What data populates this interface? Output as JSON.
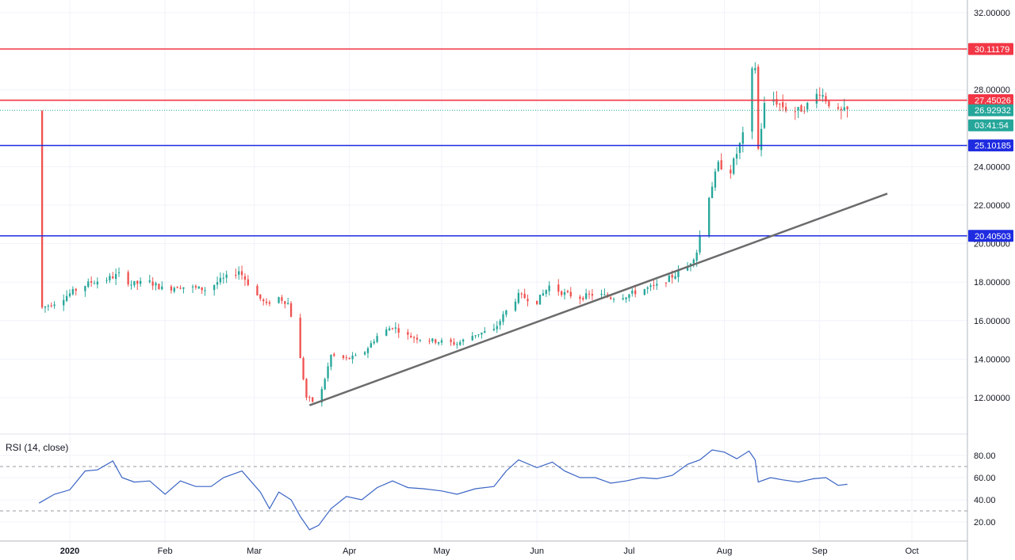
{
  "chart_data": {
    "type": "candlestick",
    "price_axis": {
      "ylim": [
        10.6,
        32.6
      ],
      "ticks": [
        12,
        14,
        16,
        18,
        20,
        22,
        24,
        28,
        32
      ],
      "tick_labels": [
        "12.00000",
        "14.00000",
        "16.00000",
        "18.00000",
        "20.00000",
        "22.00000",
        "24.00000",
        "28.00000",
        "32.00000"
      ]
    },
    "time_axis": {
      "labels": [
        {
          "date": "2020-01-01",
          "label": "2020",
          "bold": true
        },
        {
          "date": "2020-02-01",
          "label": "Feb"
        },
        {
          "date": "2020-03-01",
          "label": "Mar"
        },
        {
          "date": "2020-04-01",
          "label": "Apr"
        },
        {
          "date": "2020-05-01",
          "label": "May"
        },
        {
          "date": "2020-06-01",
          "label": "Jun"
        },
        {
          "date": "2020-07-01",
          "label": "Jul"
        },
        {
          "date": "2020-08-01",
          "label": "Aug"
        },
        {
          "date": "2020-09-01",
          "label": "Sep"
        },
        {
          "date": "2020-10-01",
          "label": "Oct"
        }
      ]
    },
    "close_path": [
      [
        "2019-12-22",
        16.6
      ],
      [
        "2019-12-28",
        17.0
      ],
      [
        "2020-01-03",
        17.6
      ],
      [
        "2020-01-08",
        18.0
      ],
      [
        "2020-01-12",
        18.1
      ],
      [
        "2020-01-17",
        18.4
      ],
      [
        "2020-01-21",
        17.9
      ],
      [
        "2020-01-27",
        18.0
      ],
      [
        "2020-02-01",
        17.6
      ],
      [
        "2020-02-05",
        17.8
      ],
      [
        "2020-02-10",
        17.7
      ],
      [
        "2020-02-15",
        17.6
      ],
      [
        "2020-02-18",
        18.0
      ],
      [
        "2020-02-23",
        18.4
      ],
      [
        "2020-02-25",
        18.6
      ],
      [
        "2020-03-02",
        17.3
      ],
      [
        "2020-03-05",
        16.8
      ],
      [
        "2020-03-08",
        17.3
      ],
      [
        "2020-03-12",
        16.9
      ],
      [
        "2020-03-15",
        15.0
      ],
      [
        "2020-03-18",
        12.0
      ],
      [
        "2020-03-20",
        11.8
      ],
      [
        "2020-03-23",
        12.4
      ],
      [
        "2020-03-26",
        14.2
      ],
      [
        "2020-03-31",
        14.0
      ],
      [
        "2020-04-05",
        14.2
      ],
      [
        "2020-04-10",
        15.2
      ],
      [
        "2020-04-15",
        15.7
      ],
      [
        "2020-04-20",
        15.2
      ],
      [
        "2020-04-26",
        15.0
      ],
      [
        "2020-05-01",
        14.9
      ],
      [
        "2020-05-06",
        14.8
      ],
      [
        "2020-05-12",
        15.3
      ],
      [
        "2020-05-18",
        15.5
      ],
      [
        "2020-05-22",
        16.5
      ],
      [
        "2020-05-26",
        17.3
      ],
      [
        "2020-06-01",
        17.0
      ],
      [
        "2020-06-05",
        17.8
      ],
      [
        "2020-06-10",
        17.4
      ],
      [
        "2020-06-15",
        17.2
      ],
      [
        "2020-06-20",
        17.4
      ],
      [
        "2020-06-25",
        17.2
      ],
      [
        "2020-06-30",
        17.3
      ],
      [
        "2020-07-05",
        17.6
      ],
      [
        "2020-07-10",
        17.8
      ],
      [
        "2020-07-15",
        18.3
      ],
      [
        "2020-07-20",
        18.8
      ],
      [
        "2020-07-23",
        19.6
      ],
      [
        "2020-07-26",
        22.0
      ],
      [
        "2020-07-30",
        24.1
      ],
      [
        "2020-08-03",
        23.8
      ],
      [
        "2020-08-07",
        25.6
      ],
      [
        "2020-08-09",
        28.6
      ],
      [
        "2020-08-11",
        29.2
      ],
      [
        "2020-08-12",
        24.9
      ],
      [
        "2020-08-14",
        27.2
      ],
      [
        "2020-08-17",
        27.5
      ],
      [
        "2020-08-21",
        27.0
      ],
      [
        "2020-08-25",
        26.9
      ],
      [
        "2020-08-28",
        27.2
      ],
      [
        "2020-09-01",
        27.9
      ],
      [
        "2020-09-04",
        27.3
      ],
      [
        "2020-09-07",
        26.8
      ],
      [
        "2020-09-10",
        26.9
      ]
    ],
    "candle_up_color": "#26a69a",
    "candle_down_color": "#ef5350",
    "horizontal_levels": [
      {
        "value": 30.11179,
        "label": "30.11179",
        "color": "#f23645"
      },
      {
        "value": 27.45026,
        "label": "27.45026",
        "color": "#f23645"
      },
      {
        "value": 25.10185,
        "label": "25.10185",
        "color": "#1e2be0"
      },
      {
        "value": 20.40503,
        "label": "20.40503",
        "color": "#1e2be0"
      }
    ],
    "last_price": {
      "value": 26.92932,
      "label": "26.92932",
      "color": "#26a69a"
    },
    "countdown": {
      "label": "03:41:54",
      "color": "#26a69a"
    },
    "trend_line": {
      "start": [
        "2020-03-19",
        11.6
      ],
      "end": [
        "2020-09-23",
        22.6
      ],
      "color": "#6b6b6b"
    },
    "rsi": {
      "title": "RSI (14, close)",
      "ylim": [
        5,
        93
      ],
      "ticks": [
        20,
        40,
        60,
        80
      ],
      "tick_labels": [
        "20.00",
        "40.00",
        "60.00",
        "80.00"
      ],
      "bands": [
        30,
        70
      ],
      "color": "#3a64c4",
      "points": [
        [
          "2019-12-22",
          37
        ],
        [
          "2019-12-27",
          45
        ],
        [
          "2020-01-01",
          49
        ],
        [
          "2020-01-06",
          66
        ],
        [
          "2020-01-10",
          67
        ],
        [
          "2020-01-15",
          75
        ],
        [
          "2020-01-18",
          60
        ],
        [
          "2020-01-22",
          56
        ],
        [
          "2020-01-27",
          57
        ],
        [
          "2020-02-01",
          45
        ],
        [
          "2020-02-06",
          57
        ],
        [
          "2020-02-11",
          52
        ],
        [
          "2020-02-16",
          52
        ],
        [
          "2020-02-20",
          60
        ],
        [
          "2020-02-26",
          66
        ],
        [
          "2020-03-03",
          47
        ],
        [
          "2020-03-06",
          32
        ],
        [
          "2020-03-09",
          47
        ],
        [
          "2020-03-13",
          40
        ],
        [
          "2020-03-16",
          25
        ],
        [
          "2020-03-19",
          13
        ],
        [
          "2020-03-22",
          17
        ],
        [
          "2020-03-26",
          32
        ],
        [
          "2020-03-31",
          43
        ],
        [
          "2020-04-05",
          40
        ],
        [
          "2020-04-10",
          51
        ],
        [
          "2020-04-15",
          57
        ],
        [
          "2020-04-20",
          51
        ],
        [
          "2020-04-25",
          50
        ],
        [
          "2020-05-01",
          48
        ],
        [
          "2020-05-06",
          45
        ],
        [
          "2020-05-12",
          50
        ],
        [
          "2020-05-18",
          52
        ],
        [
          "2020-05-22",
          66
        ],
        [
          "2020-05-26",
          76
        ],
        [
          "2020-06-01",
          69
        ],
        [
          "2020-06-06",
          74
        ],
        [
          "2020-06-10",
          66
        ],
        [
          "2020-06-15",
          60
        ],
        [
          "2020-06-20",
          60
        ],
        [
          "2020-06-25",
          55
        ],
        [
          "2020-06-30",
          57
        ],
        [
          "2020-07-05",
          60
        ],
        [
          "2020-07-10",
          59
        ],
        [
          "2020-07-15",
          62
        ],
        [
          "2020-07-20",
          72
        ],
        [
          "2020-07-24",
          76
        ],
        [
          "2020-07-28",
          85
        ],
        [
          "2020-08-01",
          83
        ],
        [
          "2020-08-05",
          77
        ],
        [
          "2020-08-09",
          84
        ],
        [
          "2020-08-11",
          76
        ],
        [
          "2020-08-12",
          56
        ],
        [
          "2020-08-16",
          60
        ],
        [
          "2020-08-20",
          58
        ],
        [
          "2020-08-25",
          56
        ],
        [
          "2020-08-30",
          59
        ],
        [
          "2020-09-03",
          60
        ],
        [
          "2020-09-07",
          53
        ],
        [
          "2020-09-10",
          54
        ]
      ]
    }
  }
}
